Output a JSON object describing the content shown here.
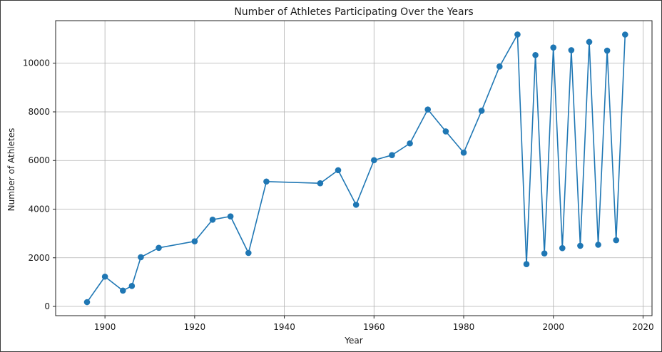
{
  "chart_data": {
    "type": "line",
    "title": "Number of Athletes Participating Over the Years",
    "xlabel": "Year",
    "ylabel": "Number of Athletes",
    "xlim": [
      1889,
      2022
    ],
    "ylim": [
      -380,
      11750
    ],
    "xticks": [
      1900,
      1920,
      1940,
      1960,
      1980,
      2000,
      2020
    ],
    "yticks": [
      0,
      2000,
      4000,
      6000,
      8000,
      10000
    ],
    "grid": true,
    "color": "#1f77b4",
    "marker": "circle",
    "series": [
      {
        "x": [
          1896,
          1900,
          1904,
          1906,
          1908,
          1912,
          1920,
          1924,
          1928,
          1932,
          1936,
          1948,
          1952,
          1956,
          1960,
          1964,
          1968,
          1972,
          1976,
          1980,
          1984,
          1988,
          1992,
          1994,
          1996,
          1998,
          2000,
          2002,
          2004,
          2006,
          2008,
          2010,
          2012,
          2014,
          2016
        ],
        "y": [
          176,
          1224,
          650,
          841,
          2024,
          2410,
          2676,
          3567,
          3703,
          2198,
          5135,
          5063,
          5601,
          4180,
          6012,
          6222,
          6703,
          8097,
          7196,
          6323,
          8046,
          9865,
          11180,
          1738,
          10336,
          2178,
          10647,
          2399,
          10538,
          2494,
          10875,
          2536,
          10518,
          2722,
          11178
        ]
      }
    ]
  }
}
